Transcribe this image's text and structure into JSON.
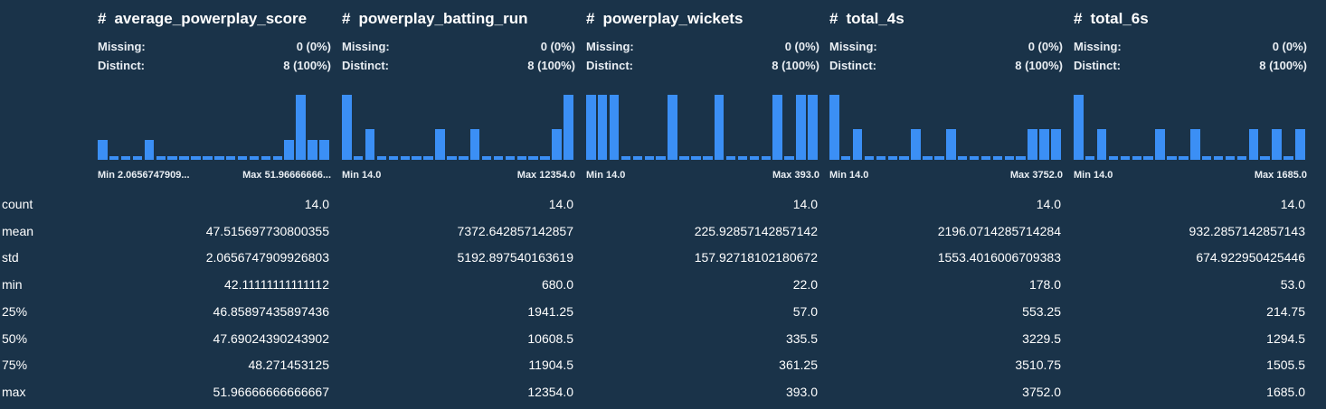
{
  "labels": {
    "missing": "Missing:",
    "distinct": "Distinct:",
    "min_prefix": "Min",
    "max_prefix": "Max",
    "hash_icon": "#"
  },
  "columns": [
    {
      "name": "average_powerplay_score",
      "missing": "0 (0%)",
      "distinct": "8 (100%)",
      "min": "2.0656747909...",
      "max": "51.96666666...",
      "histogram": [
        0.3,
        0.05,
        0.05,
        0.05,
        0.3,
        0.05,
        0.05,
        0.05,
        0.05,
        0.05,
        0.05,
        0.05,
        0.05,
        0.05,
        0.05,
        0.05,
        0.3,
        1.0,
        0.3,
        0.3
      ]
    },
    {
      "name": "powerplay_batting_run",
      "missing": "0 (0%)",
      "distinct": "8 (100%)",
      "min": "14.0",
      "max": "12354.0",
      "histogram": [
        1.0,
        0.05,
        0.47,
        0.05,
        0.05,
        0.05,
        0.05,
        0.05,
        0.47,
        0.05,
        0.05,
        0.47,
        0.05,
        0.05,
        0.05,
        0.05,
        0.05,
        0.05,
        0.47,
        1.0
      ]
    },
    {
      "name": "powerplay_wickets",
      "missing": "0 (0%)",
      "distinct": "8 (100%)",
      "min": "14.0",
      "max": "393.0",
      "histogram": [
        1.0,
        1.0,
        1.0,
        0.05,
        0.05,
        0.05,
        0.05,
        1.0,
        0.05,
        0.05,
        0.05,
        1.0,
        0.05,
        0.05,
        0.05,
        0.05,
        1.0,
        0.05,
        1.0,
        1.0
      ]
    },
    {
      "name": "total_4s",
      "missing": "0 (0%)",
      "distinct": "8 (100%)",
      "min": "14.0",
      "max": "3752.0",
      "histogram": [
        1.0,
        0.05,
        0.47,
        0.05,
        0.05,
        0.05,
        0.05,
        0.47,
        0.05,
        0.05,
        0.47,
        0.05,
        0.05,
        0.05,
        0.05,
        0.05,
        0.05,
        0.47,
        0.47,
        0.47
      ]
    },
    {
      "name": "total_6s",
      "missing": "0 (0%)",
      "distinct": "8 (100%)",
      "min": "14.0",
      "max": "1685.0",
      "histogram": [
        1.0,
        0.05,
        0.47,
        0.05,
        0.05,
        0.05,
        0.05,
        0.47,
        0.05,
        0.05,
        0.47,
        0.05,
        0.05,
        0.05,
        0.05,
        0.47,
        0.05,
        0.47,
        0.05,
        0.47
      ]
    }
  ],
  "stats": [
    {
      "label": "count",
      "values": [
        "14.0",
        "14.0",
        "14.0",
        "14.0",
        "14.0"
      ]
    },
    {
      "label": "mean",
      "values": [
        "47.515697730800355",
        "7372.642857142857",
        "225.92857142857142",
        "2196.0714285714284",
        "932.2857142857143"
      ]
    },
    {
      "label": "std",
      "values": [
        "2.0656747909926803",
        "5192.897540163619",
        "157.92718102180672",
        "1553.4016006709383",
        "674.922950425446"
      ]
    },
    {
      "label": "min",
      "values": [
        "42.11111111111112",
        "680.0",
        "22.0",
        "178.0",
        "53.0"
      ]
    },
    {
      "label": "25%",
      "values": [
        "46.85897435897436",
        "1941.25",
        "57.0",
        "553.25",
        "214.75"
      ]
    },
    {
      "label": "50%",
      "values": [
        "47.69024390243902",
        "10608.5",
        "335.5",
        "3229.5",
        "1294.5"
      ]
    },
    {
      "label": "75%",
      "values": [
        "48.271453125",
        "11904.5",
        "361.25",
        "3510.75",
        "1505.5"
      ]
    },
    {
      "label": "max",
      "values": [
        "51.96666666666667",
        "12354.0",
        "393.0",
        "3752.0",
        "1685.0"
      ]
    }
  ],
  "colors": {
    "background": "#1a3349",
    "bar": "#3b8ff5"
  }
}
